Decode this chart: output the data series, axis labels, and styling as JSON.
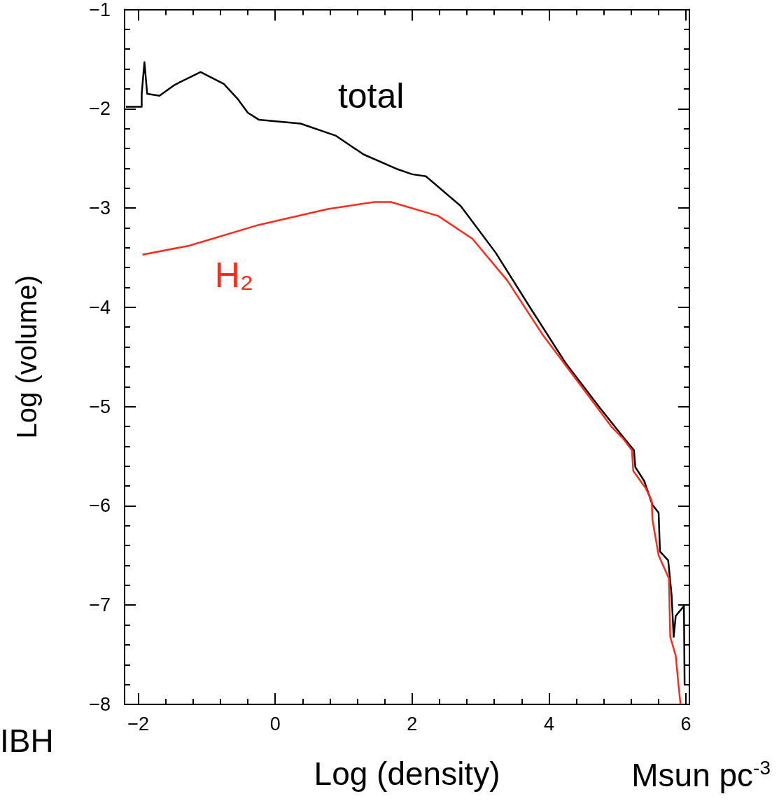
{
  "chart_data": {
    "type": "line",
    "xlabel": "Log (density)",
    "ylabel": "Log (volume)",
    "xlim": [
      -2.2,
      6.05
    ],
    "ylim": [
      -8,
      -1
    ],
    "xticks": [
      {
        "value": -2,
        "label": "−2"
      },
      0,
      2,
      4,
      6
    ],
    "yticks": [
      {
        "value": -1,
        "label": "−1"
      },
      {
        "value": -2,
        "label": "−2"
      },
      {
        "value": -3,
        "label": "−3"
      },
      {
        "value": -4,
        "label": "−4"
      },
      {
        "value": -5,
        "label": "−5"
      },
      {
        "value": -6,
        "label": "−6"
      },
      {
        "value": -7,
        "label": "−7"
      },
      {
        "value": -8,
        "label": "−8"
      }
    ],
    "grid": false,
    "legend": false,
    "marker": "none",
    "line_style": "solid",
    "series": [
      {
        "name": "total",
        "color": "#000000",
        "x": [
          -2.18,
          -1.95,
          -1.95,
          -1.91,
          -1.87,
          -1.69,
          -1.47,
          -1.09,
          -0.75,
          -0.55,
          -0.4,
          -0.24,
          0.37,
          0.88,
          1.29,
          1.79,
          2.0,
          2.2,
          2.71,
          3.22,
          3.73,
          4.24,
          4.75,
          5.11,
          5.24,
          5.26,
          5.39,
          5.51,
          5.6,
          5.62,
          5.74,
          5.79,
          5.82,
          5.85,
          5.97,
          5.98
        ],
        "values": [
          -1.98,
          -1.98,
          -1.85,
          -1.53,
          -1.85,
          -1.87,
          -1.76,
          -1.63,
          -1.75,
          -1.9,
          -2.04,
          -2.11,
          -2.15,
          -2.27,
          -2.46,
          -2.61,
          -2.66,
          -2.68,
          -2.98,
          -3.45,
          -4.01,
          -4.56,
          -5.02,
          -5.33,
          -5.44,
          -5.61,
          -5.75,
          -5.99,
          -6.07,
          -6.46,
          -6.55,
          -6.9,
          -7.32,
          -7.11,
          -7.01,
          -7.8
        ]
      },
      {
        "name": "H₂",
        "color": "#ff2a1a",
        "x": [
          -1.94,
          -1.26,
          -0.24,
          0.77,
          1.45,
          1.69,
          2.38,
          2.88,
          3.39,
          3.9,
          4.41,
          4.92,
          5.09,
          5.21,
          5.23,
          5.41,
          5.5,
          5.51,
          5.6,
          5.75,
          5.77,
          5.85,
          5.89,
          5.92
        ],
        "values": [
          -3.47,
          -3.38,
          -3.17,
          -3.01,
          -2.94,
          -2.94,
          -3.08,
          -3.31,
          -3.73,
          -4.27,
          -4.74,
          -5.21,
          -5.33,
          -5.44,
          -5.65,
          -5.82,
          -5.95,
          -6.14,
          -6.5,
          -6.73,
          -7.32,
          -7.51,
          -7.8,
          -8
        ]
      }
    ],
    "annotations": [
      "IBH",
      "Msun pc$^{-3}$"
    ]
  }
}
